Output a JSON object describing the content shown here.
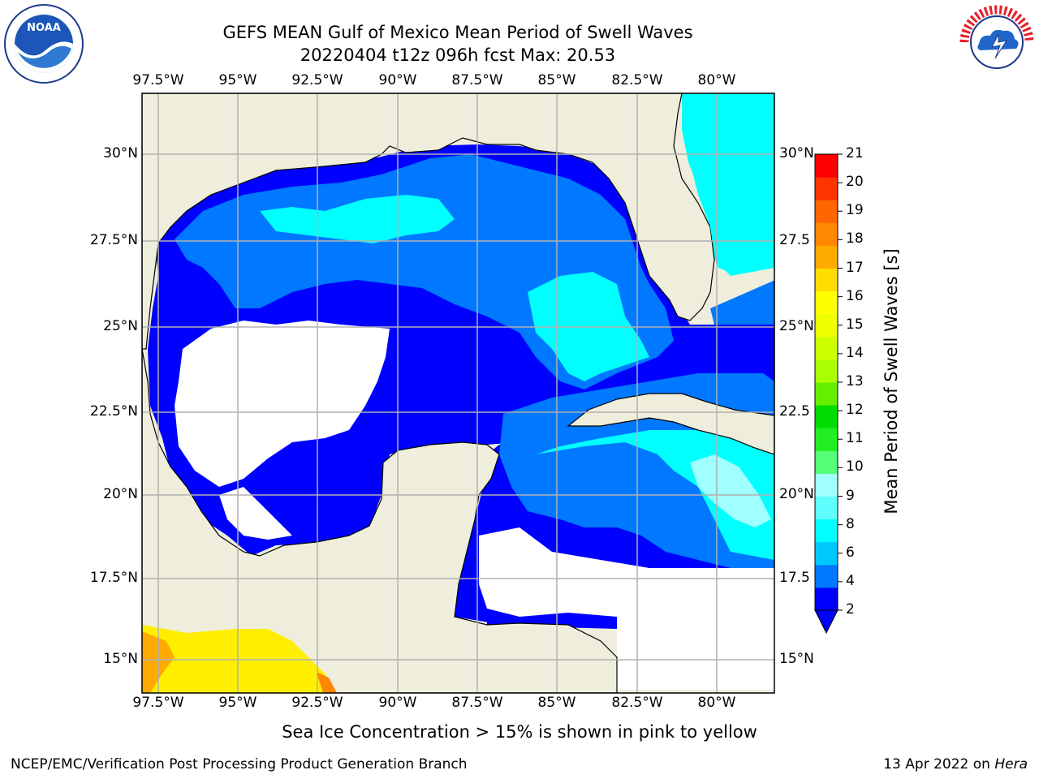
{
  "header": {
    "title_line1": "GEFS MEAN Gulf of Mexico Mean Period of Swell Waves",
    "title_line2": "20220404 t12z 096h fcst   Max: 20.53"
  },
  "logos": {
    "left": {
      "name": "NOAA",
      "ring_text": "NATIONAL OCEANIC AND ATMOSPHERIC ADMINISTRATION · U.S. DEPARTMENT OF COMMERCE"
    },
    "right": {
      "name": "NATIONAL WEATHER SERVICE"
    }
  },
  "map": {
    "lon_labels": [
      "97.5°W",
      "95°W",
      "92.5°W",
      "90°W",
      "87.5°W",
      "85°W",
      "82.5°W",
      "80°W"
    ],
    "lat_labels_left": [
      "30°N",
      "27.5°N",
      "25°N",
      "22.5°N",
      "20°N",
      "17.5°N",
      "15°N"
    ],
    "lat_labels_right": [
      "30°N",
      "27.5",
      "25°N",
      "22.5",
      "20°N",
      "17.5",
      "15°N"
    ],
    "colors": {
      "land": "#efeedc",
      "grid": "#b0b0b0",
      "coast": "#000000",
      "ice": "#ffee00"
    }
  },
  "colorbar": {
    "title": "Mean Period of Swell Waves [s]",
    "ticks": [
      "2",
      "4",
      "6",
      "8",
      "9",
      "10",
      "11",
      "12",
      "13",
      "14",
      "15",
      "16",
      "17",
      "18",
      "19",
      "20",
      "21"
    ],
    "colors": [
      "#0000ff",
      "#0078ff",
      "#00c8ff",
      "#00ffff",
      "#60ffff",
      "#a0ffff",
      "#55ff77",
      "#22ee22",
      "#00dd00",
      "#66ee00",
      "#aaff00",
      "#ccff00",
      "#eeff00",
      "#ffff00",
      "#ffdd00",
      "#ffaa00",
      "#ff8800",
      "#ff6600",
      "#ff3300",
      "#ff0000"
    ]
  },
  "caption": "Sea Ice Concentration > 15% is shown in pink to yellow",
  "footer": {
    "left": "NCEP/EMC/Verification Post Processing Product Generation Branch",
    "date": "13 Apr 2022 on ",
    "machine": "Hera"
  }
}
